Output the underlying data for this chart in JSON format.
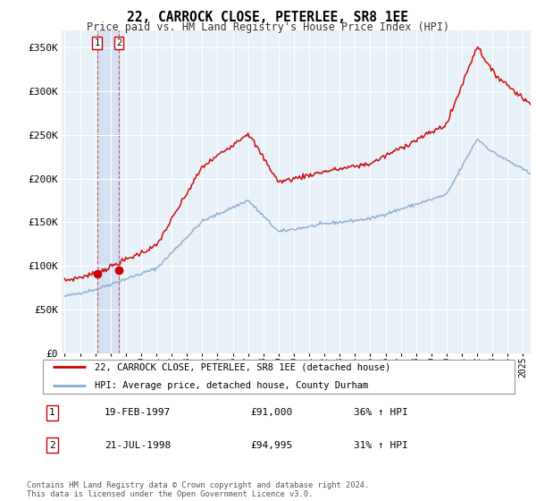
{
  "title": "22, CARROCK CLOSE, PETERLEE, SR8 1EE",
  "subtitle": "Price paid vs. HM Land Registry's House Price Index (HPI)",
  "red_line_label": "22, CARROCK CLOSE, PETERLEE, SR8 1EE (detached house)",
  "blue_line_label": "HPI: Average price, detached house, County Durham",
  "transaction1_date": "19-FEB-1997",
  "transaction1_price": "£91,000",
  "transaction1_hpi": "36% ↑ HPI",
  "transaction2_date": "21-JUL-1998",
  "transaction2_price": "£94,995",
  "transaction2_hpi": "31% ↑ HPI",
  "footer": "Contains HM Land Registry data © Crown copyright and database right 2024.\nThis data is licensed under the Open Government Licence v3.0.",
  "ylim": [
    0,
    370000
  ],
  "yticks": [
    0,
    50000,
    100000,
    150000,
    200000,
    250000,
    300000,
    350000
  ],
  "ytick_labels": [
    "£0",
    "£50K",
    "£100K",
    "£150K",
    "£200K",
    "£250K",
    "£300K",
    "£350K"
  ],
  "fig_bg_color": "#ffffff",
  "plot_bg_color": "#e8f0f8",
  "red_color": "#cc0000",
  "blue_color": "#88aacc",
  "transaction1_x": 1997.12,
  "transaction1_y": 91000,
  "transaction2_x": 1998.55,
  "transaction2_y": 94995,
  "xmin": 1994.8,
  "xmax": 2025.5
}
